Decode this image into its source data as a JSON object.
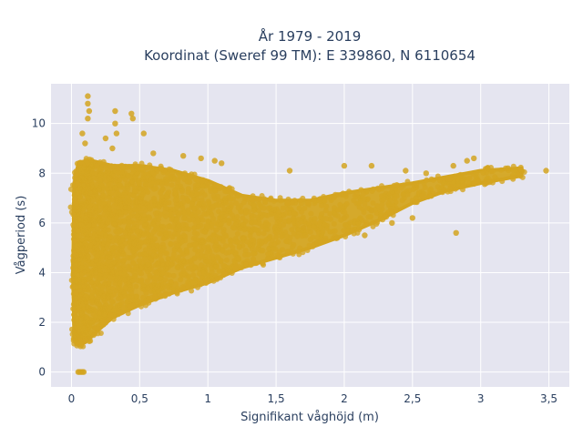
{
  "chart_data": {
    "type": "scatter",
    "title_lines": [
      "År 1979 - 2019",
      "Koordinat (Sweref 99 TM): E 339860, N 6110654"
    ],
    "xlabel": "Signifikant våghöjd (m)",
    "ylabel": "Vågperiod (s)",
    "xlim": [
      -0.15,
      3.65
    ],
    "ylim": [
      -0.6,
      11.6
    ],
    "x_ticks": [
      0,
      0.5,
      1,
      1.5,
      2,
      2.5,
      3,
      3.5
    ],
    "x_tick_labels": [
      "0",
      "0,5",
      "1",
      "1,5",
      "2",
      "2,5",
      "3",
      "3,5"
    ],
    "y_ticks": [
      0,
      2,
      4,
      6,
      8,
      10
    ],
    "y_tick_labels": [
      "0",
      "2",
      "4",
      "6",
      "8",
      "10"
    ],
    "marker_color": "#d4a520",
    "background": "#e5e5f0",
    "grid": true,
    "series": [
      {
        "outline": [
          [
            0.02,
            1.4
          ],
          [
            0.05,
            1.1
          ],
          [
            0.1,
            1.2
          ],
          [
            0.2,
            1.7
          ],
          [
            0.3,
            2.2
          ],
          [
            0.5,
            2.7
          ],
          [
            0.75,
            3.2
          ],
          [
            1.0,
            3.6
          ],
          [
            1.25,
            4.2
          ],
          [
            1.5,
            4.6
          ],
          [
            1.75,
            5.0
          ],
          [
            2.0,
            5.5
          ],
          [
            2.25,
            6.1
          ],
          [
            2.5,
            6.8
          ],
          [
            2.75,
            7.3
          ],
          [
            3.0,
            7.6
          ],
          [
            3.3,
            7.9
          ],
          [
            3.3,
            8.2
          ],
          [
            3.0,
            8.1
          ],
          [
            2.5,
            7.6
          ],
          [
            2.0,
            7.2
          ],
          [
            1.75,
            6.9
          ],
          [
            1.5,
            6.9
          ],
          [
            1.25,
            7.1
          ],
          [
            1.0,
            7.7
          ],
          [
            0.75,
            8.1
          ],
          [
            0.5,
            8.3
          ],
          [
            0.3,
            8.3
          ],
          [
            0.15,
            8.5
          ],
          [
            0.05,
            8.4
          ],
          [
            0.02,
            7.5
          ],
          [
            0.01,
            4.0
          ]
        ],
        "outliers": [
          [
            0.12,
            11.1
          ],
          [
            0.12,
            10.8
          ],
          [
            0.13,
            10.5
          ],
          [
            0.12,
            10.2
          ],
          [
            0.32,
            10.5
          ],
          [
            0.44,
            10.4
          ],
          [
            0.45,
            10.2
          ],
          [
            0.32,
            10.0
          ],
          [
            0.33,
            9.6
          ],
          [
            0.08,
            9.6
          ],
          [
            0.1,
            9.2
          ],
          [
            0.53,
            9.6
          ],
          [
            0.25,
            9.4
          ],
          [
            0.3,
            9.0
          ],
          [
            0.6,
            8.8
          ],
          [
            0.82,
            8.7
          ],
          [
            0.95,
            8.6
          ],
          [
            1.05,
            8.5
          ],
          [
            1.1,
            8.4
          ],
          [
            1.6,
            8.1
          ],
          [
            2.0,
            8.3
          ],
          [
            2.2,
            8.3
          ],
          [
            2.45,
            8.1
          ],
          [
            2.6,
            8.0
          ],
          [
            2.8,
            8.3
          ],
          [
            2.9,
            8.5
          ],
          [
            2.95,
            8.6
          ],
          [
            3.05,
            8.2
          ],
          [
            3.2,
            8.2
          ],
          [
            3.48,
            8.1
          ],
          [
            2.82,
            5.6
          ],
          [
            2.5,
            6.2
          ],
          [
            2.2,
            6.5
          ],
          [
            2.35,
            6.0
          ],
          [
            1.95,
            5.4
          ],
          [
            2.15,
            5.5
          ],
          [
            2.0,
            6.2
          ],
          [
            1.8,
            5.2
          ],
          [
            1.7,
            5.8
          ],
          [
            0.05,
            0.0
          ],
          [
            0.06,
            0.0
          ],
          [
            0.07,
            0.0
          ],
          [
            0.08,
            0.0
          ],
          [
            0.09,
            0.0
          ],
          [
            0.05,
            1.5
          ],
          [
            0.02,
            1.6
          ],
          [
            0.03,
            1.3
          ]
        ]
      }
    ]
  }
}
